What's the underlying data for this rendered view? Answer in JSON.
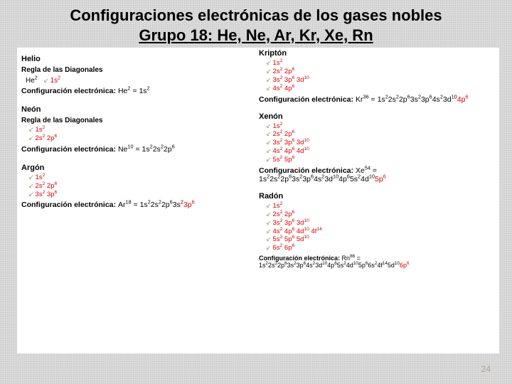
{
  "title_line1": "Configuraciones  electrónicas de los gases nobles",
  "title_line2": "Grupo 18: He, Ne, Ar, Kr, Xe, Rn",
  "page_number": "24",
  "colors": {
    "accent": "#d10000",
    "text": "#000000",
    "bg": "#ffffff",
    "page_bg": "#d8d8d8"
  },
  "elements": {
    "he": {
      "name": "Helio",
      "rule_label": "Regla de las Diagonales",
      "symbol_html": "He<sup>2</sup>",
      "diag_rows": [
        "1s<sup>2</sup>"
      ],
      "cfg_label": "Configuración electrónica:",
      "cfg_html": "He<sup>2</sup> =  1s<sup>2</sup>"
    },
    "ne": {
      "name": "Neón",
      "rule_label": "Regla de las Diagonales",
      "diag_rows": [
        "1s<sup>2</sup>",
        "2s<sup>2</sup>  2p<sup>6</sup>"
      ],
      "cfg_label": "Configuración electrónica:",
      "cfg_html": "Ne<sup>10</sup> = 1s<sup>2</sup>2s<sup>2</sup>2p<sup>6</sup>",
      "cfg_end_red": ""
    },
    "ar": {
      "name": "Argón",
      "diag_rows": [
        "1s<sup>2</sup>",
        "2s<sup>2</sup>  2p<sup>6</sup>",
        "3s<sup>2</sup>  3p<sup>6</sup>"
      ],
      "cfg_label": "Configuración electrónica:",
      "cfg_html": "Ar<sup>18</sup> = 1s<sup>2</sup>2s<sup>2</sup>2p<sup>6</sup>3s<sup>2</sup>",
      "cfg_end_red": "3p<sup>6</sup>"
    },
    "kr": {
      "name": "Kriptón",
      "diag_rows": [
        "1s<sup>2</sup>",
        "2s<sup>2</sup>  2p<sup>6</sup>",
        "3s<sup>2</sup>  3p<sup>6</sup>  3d<sup>10</sup>",
        "4s<sup>2</sup>  4p<sup>6</sup>"
      ],
      "cfg_label": "Configuración electrónica:",
      "cfg_html": "Kr<sup>36</sup> =  1s<sup>2</sup>2s<sup>2</sup>2p<sup>6</sup>3s<sup>2</sup>3p<sup>6</sup>4s<sup>2</sup>3d<sup>10</sup>",
      "cfg_end_red": "4p<sup>6</sup>"
    },
    "xe": {
      "name": "Xenón",
      "diag_rows": [
        "1s<sup>2</sup>",
        "2s<sup>2</sup>  2p<sup>6</sup>",
        "3s<sup>2</sup>  3p<sup>6</sup>  3d<sup>10</sup>",
        "4s<sup>2</sup>  4p<sup>6</sup>  4d<sup>10</sup>",
        "5s<sup>2</sup>  5p<sup>6</sup>"
      ],
      "cfg_label": "Configuración electrónica:",
      "cfg_html": "Xe<sup>54</sup> = 1s<sup>2</sup>2s<sup>2</sup>2p<sup>6</sup>3s<sup>2</sup>3p<sup>6</sup>4s<sup>2</sup>3d<sup>10</sup>4p<sup>6</sup>5s<sup>2</sup>4d<sup>10</sup>",
      "cfg_end_red": "5p<sup>6</sup>"
    },
    "rn": {
      "name": "Radón",
      "diag_rows": [
        "1s<sup>2</sup>",
        "2s<sup>2</sup>  2p<sup>6</sup>",
        "3s<sup>2</sup>  3p<sup>6</sup>  3d<sup>10</sup>",
        "4s<sup>2</sup>  4p<sup>6</sup>  4d<sup>10</sup>  4f<sup>14</sup>",
        "5s<sup>2</sup>  5p<sup>6</sup>  5d<sup>10</sup>",
        "6s<sup>2</sup>  6p<sup>6</sup>"
      ],
      "cfg_label": "Configuración electrónica:",
      "cfg_html": "Rn<sup>86</sup> = 1s<sup>2</sup>2s<sup>2</sup>2p<sup>6</sup>3s<sup>2</sup>3p<sup>6</sup>4s<sup>2</sup>3d<sup>10</sup>4p<sup>6</sup>5s<sup>2</sup>4d<sup>10</sup>5p<sup>6</sup>6s<sup>2</sup>4f<sup>14</sup>5d<sup>10</sup>",
      "cfg_end_red": "6p<sup>6</sup>"
    }
  }
}
